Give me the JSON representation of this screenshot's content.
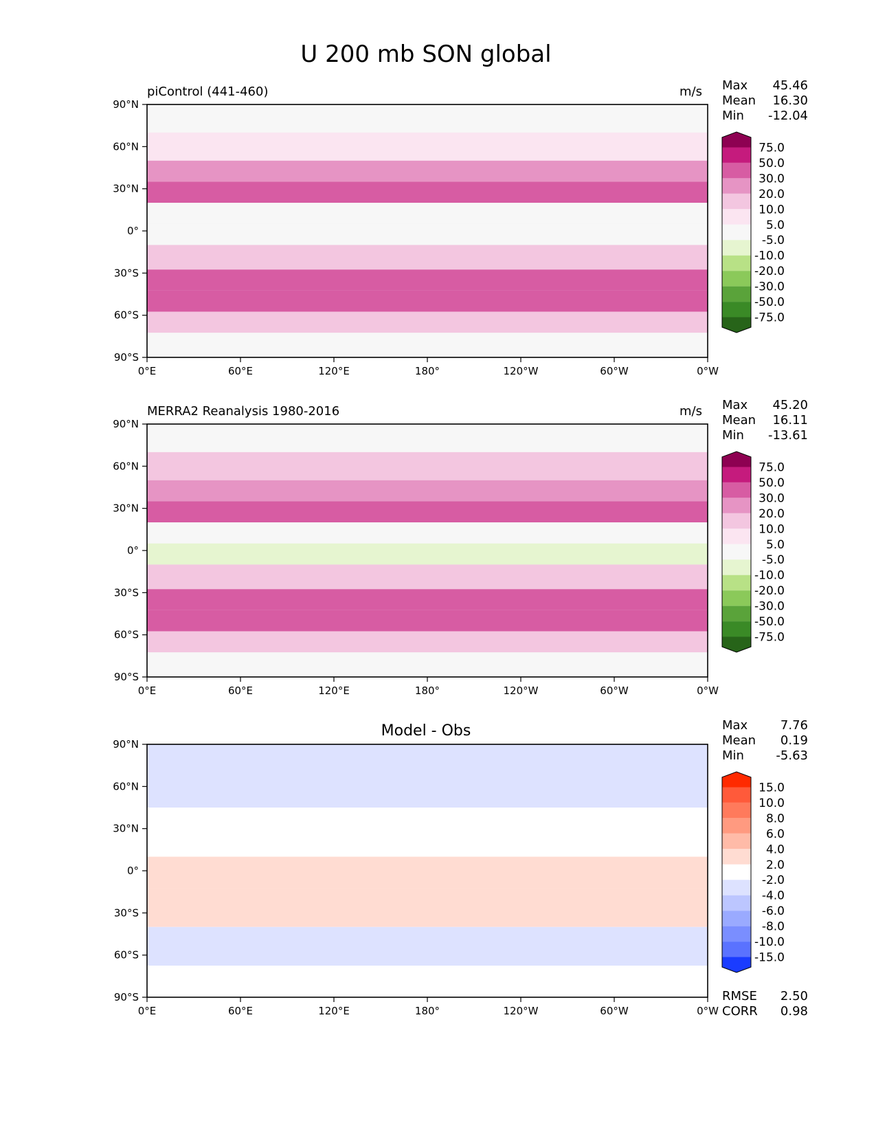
{
  "figure": {
    "title": "U 200 mb SON global"
  },
  "chart_data": [
    {
      "type": "heatmap",
      "title": "piControl (441-460)",
      "units": "m/s",
      "stats": [
        {
          "label": "Max",
          "value": "45.46"
        },
        {
          "label": "Mean",
          "value": "16.30"
        },
        {
          "label": "Min",
          "value": "-12.04"
        }
      ],
      "x_ticks": [
        "0°E",
        "60°E",
        "120°E",
        "180°",
        "120°W",
        "60°W",
        "0°W"
      ],
      "y_ticks": [
        "90°N",
        "60°N",
        "30°N",
        "0°",
        "30°S",
        "60°S",
        "90°S"
      ],
      "colorbar": {
        "levels": [
          "75.0",
          "50.0",
          "30.0",
          "20.0",
          "10.0",
          "5.0",
          "-5.0",
          "-10.0",
          "-20.0",
          "-30.0",
          "-50.0",
          "-75.0"
        ],
        "colors": [
          "#8e0152",
          "#c51b7d",
          "#d75ca3",
          "#e694c4",
          "#f3c6e0",
          "#fbe5f1",
          "#f7f7f7",
          "#e6f5d0",
          "#b8e186",
          "#8bc95a",
          "#5aa33a",
          "#3a8a26",
          "#276419"
        ]
      },
      "field": [
        {
          "lat": 80,
          "value": 3
        },
        {
          "lat": 60,
          "value": 8
        },
        {
          "lat": 40,
          "value": 28
        },
        {
          "lat": 30,
          "value": 35
        },
        {
          "lat": 10,
          "value": 2
        },
        {
          "lat": 0,
          "value": -5
        },
        {
          "lat": -20,
          "value": 15
        },
        {
          "lat": -35,
          "value": 35
        },
        {
          "lat": -50,
          "value": 32
        },
        {
          "lat": -65,
          "value": 18
        },
        {
          "lat": -80,
          "value": 3
        }
      ]
    },
    {
      "type": "heatmap",
      "title": "MERRA2 Reanalysis 1980-2016",
      "units": "m/s",
      "stats": [
        {
          "label": "Max",
          "value": "45.20"
        },
        {
          "label": "Mean",
          "value": "16.11"
        },
        {
          "label": "Min",
          "value": "-13.61"
        }
      ],
      "x_ticks": [
        "0°E",
        "60°E",
        "120°E",
        "180°",
        "120°W",
        "60°W",
        "0°W"
      ],
      "y_ticks": [
        "90°N",
        "60°N",
        "30°N",
        "0°",
        "30°S",
        "60°S",
        "90°S"
      ],
      "colorbar": {
        "levels": [
          "75.0",
          "50.0",
          "30.0",
          "20.0",
          "10.0",
          "5.0",
          "-5.0",
          "-10.0",
          "-20.0",
          "-30.0",
          "-50.0",
          "-75.0"
        ],
        "colors": [
          "#8e0152",
          "#c51b7d",
          "#d75ca3",
          "#e694c4",
          "#f3c6e0",
          "#fbe5f1",
          "#f7f7f7",
          "#e6f5d0",
          "#b8e186",
          "#8bc95a",
          "#5aa33a",
          "#3a8a26",
          "#276419"
        ]
      },
      "field": [
        {
          "lat": 80,
          "value": 4
        },
        {
          "lat": 60,
          "value": 10
        },
        {
          "lat": 40,
          "value": 28
        },
        {
          "lat": 30,
          "value": 33
        },
        {
          "lat": 10,
          "value": 3
        },
        {
          "lat": 0,
          "value": -6
        },
        {
          "lat": -20,
          "value": 14
        },
        {
          "lat": -35,
          "value": 33
        },
        {
          "lat": -50,
          "value": 32
        },
        {
          "lat": -65,
          "value": 17
        },
        {
          "lat": -80,
          "value": 3
        }
      ]
    },
    {
      "type": "heatmap",
      "title": "Model - Obs",
      "units": "",
      "stats": [
        {
          "label": "Max",
          "value": "7.76"
        },
        {
          "label": "Mean",
          "value": "0.19"
        },
        {
          "label": "Min",
          "value": "-5.63"
        }
      ],
      "metrics": [
        {
          "label": "RMSE",
          "value": "2.50"
        },
        {
          "label": "CORR",
          "value": "0.98"
        }
      ],
      "x_ticks": [
        "0°E",
        "60°E",
        "120°E",
        "180°",
        "120°W",
        "60°W",
        "0°W"
      ],
      "y_ticks": [
        "90°N",
        "60°N",
        "30°N",
        "0°",
        "30°S",
        "60°S",
        "90°S"
      ],
      "colorbar": {
        "levels": [
          "15.0",
          "10.0",
          "8.0",
          "6.0",
          "4.0",
          "2.0",
          "-2.0",
          "-4.0",
          "-6.0",
          "-8.0",
          "-10.0",
          "-15.0"
        ],
        "colors": [
          "#ff2a00",
          "#ff5a3a",
          "#ff7a5c",
          "#ff9a80",
          "#ffbba8",
          "#ffdcd2",
          "#ffffff",
          "#dde2ff",
          "#bcc6ff",
          "#9aaaff",
          "#7a8eff",
          "#5a72ff",
          "#1a3cff"
        ]
      },
      "field": [
        {
          "lat": 70,
          "value": -2.5
        },
        {
          "lat": 20,
          "value": 0
        },
        {
          "lat": 0,
          "value": 2.5
        },
        {
          "lat": -25,
          "value": 3
        },
        {
          "lat": -55,
          "value": -2.5
        },
        {
          "lat": -80,
          "value": 0
        }
      ]
    }
  ]
}
